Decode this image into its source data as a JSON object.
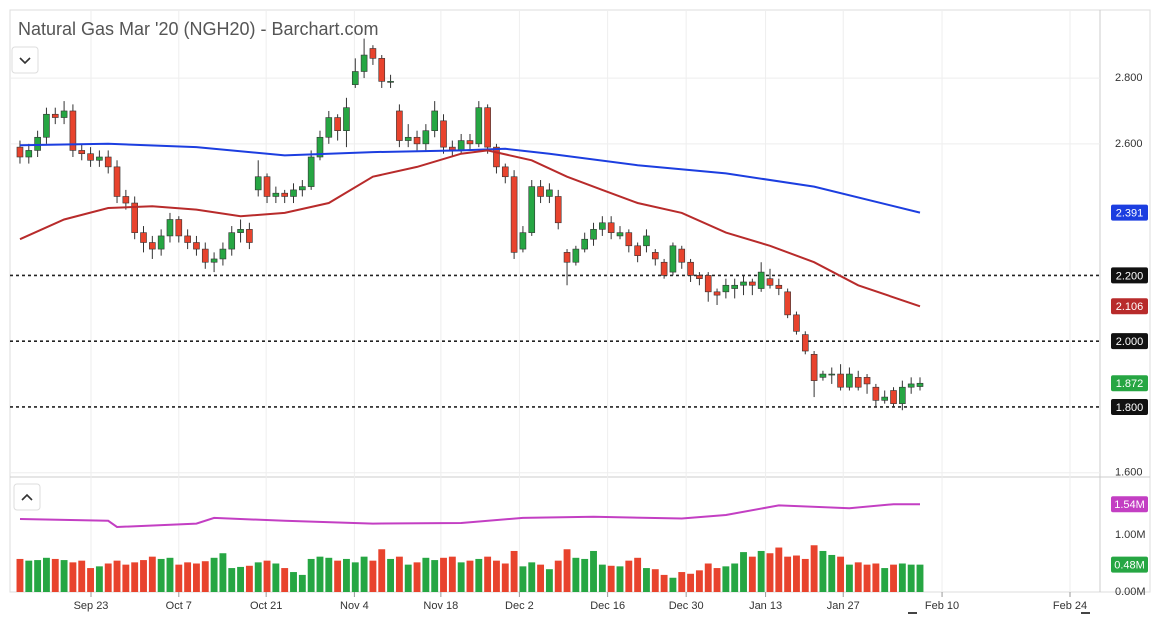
{
  "chart_data": [
    {
      "type": "candlestick",
      "title": "Natural Gas Mar '20 (NGH20) - Barchart.com",
      "up_color": "#26a643",
      "down_color": "#e8432d",
      "xlim": [
        -1.13,
        122.4
      ],
      "xticks": [
        {
          "value": 8.05,
          "label": "Sep 23"
        },
        {
          "value": 18.0,
          "label": "Oct 7"
        },
        {
          "value": 27.9,
          "label": "Oct 21"
        },
        {
          "value": 37.9,
          "label": "Nov 4"
        },
        {
          "value": 47.7,
          "label": "Nov 18"
        },
        {
          "value": 56.6,
          "label": "Dec 2"
        },
        {
          "value": 66.6,
          "label": "Dec 16"
        },
        {
          "value": 75.5,
          "label": "Dec 30"
        },
        {
          "value": 84.5,
          "label": "Jan 13"
        },
        {
          "value": 93.3,
          "label": "Jan 27"
        },
        {
          "value": 104.5,
          "label": "Feb 10"
        },
        {
          "value": 119.0,
          "label": "Feb 24"
        }
      ],
      "ylim": [
        1.59,
        3.007
      ],
      "yticks": [
        {
          "value": 2.8,
          "label": "2.800"
        },
        {
          "value": 2.6,
          "label": "2.600"
        },
        {
          "value": 1.6,
          "label": "1.600"
        }
      ],
      "grid": true,
      "levels": [
        {
          "value": 2.2,
          "label": "2.200"
        },
        {
          "value": 2.0,
          "label": "2.000"
        },
        {
          "value": 1.8,
          "label": "1.800"
        }
      ],
      "candles": [
        [
          2.59,
          2.61,
          2.54,
          2.56
        ],
        [
          2.56,
          2.6,
          2.54,
          2.58
        ],
        [
          2.58,
          2.64,
          2.56,
          2.62
        ],
        [
          2.62,
          2.71,
          2.6,
          2.69
        ],
        [
          2.69,
          2.71,
          2.66,
          2.68
        ],
        [
          2.68,
          2.73,
          2.66,
          2.7
        ],
        [
          2.7,
          2.72,
          2.56,
          2.58
        ],
        [
          2.58,
          2.6,
          2.55,
          2.57
        ],
        [
          2.57,
          2.59,
          2.53,
          2.55
        ],
        [
          2.55,
          2.58,
          2.53,
          2.56
        ],
        [
          2.56,
          2.58,
          2.51,
          2.53
        ],
        [
          2.53,
          2.55,
          2.42,
          2.44
        ],
        [
          2.44,
          2.46,
          2.4,
          2.42
        ],
        [
          2.42,
          2.44,
          2.31,
          2.33
        ],
        [
          2.33,
          2.35,
          2.27,
          2.3
        ],
        [
          2.3,
          2.32,
          2.25,
          2.28
        ],
        [
          2.28,
          2.34,
          2.26,
          2.32
        ],
        [
          2.32,
          2.39,
          2.3,
          2.37
        ],
        [
          2.37,
          2.38,
          2.3,
          2.32
        ],
        [
          2.32,
          2.34,
          2.28,
          2.3
        ],
        [
          2.3,
          2.32,
          2.26,
          2.28
        ],
        [
          2.28,
          2.3,
          2.22,
          2.24
        ],
        [
          2.24,
          2.27,
          2.21,
          2.25
        ],
        [
          2.25,
          2.3,
          2.23,
          2.28
        ],
        [
          2.28,
          2.35,
          2.26,
          2.33
        ],
        [
          2.33,
          2.37,
          2.3,
          2.34
        ],
        [
          2.34,
          2.36,
          2.28,
          2.3
        ],
        [
          2.46,
          2.55,
          2.44,
          2.5
        ],
        [
          2.5,
          2.51,
          2.42,
          2.44
        ],
        [
          2.44,
          2.47,
          2.42,
          2.45
        ],
        [
          2.45,
          2.46,
          2.42,
          2.44
        ],
        [
          2.44,
          2.48,
          2.42,
          2.46
        ],
        [
          2.46,
          2.49,
          2.44,
          2.47
        ],
        [
          2.47,
          2.58,
          2.46,
          2.56
        ],
        [
          2.56,
          2.64,
          2.55,
          2.62
        ],
        [
          2.62,
          2.7,
          2.6,
          2.68
        ],
        [
          2.68,
          2.69,
          2.61,
          2.64
        ],
        [
          2.64,
          2.74,
          2.59,
          2.71
        ],
        [
          2.78,
          2.86,
          2.77,
          2.82
        ],
        [
          2.82,
          2.92,
          2.8,
          2.87
        ],
        [
          2.89,
          2.9,
          2.84,
          2.86
        ],
        [
          2.86,
          2.87,
          2.77,
          2.79
        ],
        [
          2.79,
          2.81,
          2.77,
          2.79
        ],
        [
          2.7,
          2.72,
          2.59,
          2.61
        ],
        [
          2.61,
          2.66,
          2.59,
          2.62
        ],
        [
          2.62,
          2.64,
          2.58,
          2.6
        ],
        [
          2.6,
          2.66,
          2.58,
          2.64
        ],
        [
          2.64,
          2.73,
          2.62,
          2.7
        ],
        [
          2.67,
          2.69,
          2.57,
          2.59
        ],
        [
          2.59,
          2.61,
          2.56,
          2.58
        ],
        [
          2.58,
          2.63,
          2.57,
          2.61
        ],
        [
          2.61,
          2.63,
          2.58,
          2.6
        ],
        [
          2.6,
          2.73,
          2.59,
          2.71
        ],
        [
          2.71,
          2.72,
          2.57,
          2.59
        ],
        [
          2.59,
          2.6,
          2.51,
          2.53
        ],
        [
          2.53,
          2.54,
          2.48,
          2.5
        ],
        [
          2.5,
          2.52,
          2.25,
          2.27
        ],
        [
          2.28,
          2.35,
          2.27,
          2.33
        ],
        [
          2.33,
          2.49,
          2.32,
          2.47
        ],
        [
          2.47,
          2.49,
          2.42,
          2.44
        ],
        [
          2.44,
          2.48,
          2.42,
          2.46
        ],
        [
          2.44,
          2.46,
          2.34,
          2.36
        ],
        [
          2.27,
          2.28,
          2.17,
          2.24
        ],
        [
          2.24,
          2.29,
          2.23,
          2.28
        ],
        [
          2.28,
          2.33,
          2.27,
          2.31
        ],
        [
          2.31,
          2.36,
          2.29,
          2.34
        ],
        [
          2.34,
          2.38,
          2.32,
          2.36
        ],
        [
          2.36,
          2.38,
          2.31,
          2.33
        ],
        [
          2.32,
          2.35,
          2.31,
          2.33
        ],
        [
          2.33,
          2.34,
          2.27,
          2.29
        ],
        [
          2.29,
          2.3,
          2.24,
          2.26
        ],
        [
          2.29,
          2.34,
          2.27,
          2.32
        ],
        [
          2.27,
          2.28,
          2.23,
          2.25
        ],
        [
          2.24,
          2.25,
          2.19,
          2.2
        ],
        [
          2.21,
          2.3,
          2.2,
          2.29
        ],
        [
          2.28,
          2.29,
          2.22,
          2.24
        ],
        [
          2.24,
          2.25,
          2.18,
          2.2
        ],
        [
          2.2,
          2.21,
          2.17,
          2.19
        ],
        [
          2.2,
          2.21,
          2.12,
          2.15
        ],
        [
          2.15,
          2.16,
          2.11,
          2.14
        ],
        [
          2.15,
          2.19,
          2.13,
          2.17
        ],
        [
          2.16,
          2.19,
          2.13,
          2.17
        ],
        [
          2.17,
          2.2,
          2.14,
          2.18
        ],
        [
          2.18,
          2.19,
          2.14,
          2.17
        ],
        [
          2.16,
          2.24,
          2.15,
          2.21
        ],
        [
          2.19,
          2.22,
          2.16,
          2.17
        ],
        [
          2.17,
          2.19,
          2.14,
          2.16
        ],
        [
          2.15,
          2.16,
          2.07,
          2.08
        ],
        [
          2.08,
          2.09,
          2.02,
          2.03
        ],
        [
          2.02,
          2.03,
          1.96,
          1.97
        ],
        [
          1.96,
          1.97,
          1.83,
          1.88
        ],
        [
          1.89,
          1.91,
          1.88,
          1.9
        ],
        [
          1.9,
          1.92,
          1.87,
          1.9
        ],
        [
          1.9,
          1.93,
          1.85,
          1.86
        ],
        [
          1.86,
          1.92,
          1.85,
          1.9
        ],
        [
          1.89,
          1.91,
          1.85,
          1.86
        ],
        [
          1.89,
          1.9,
          1.84,
          1.87
        ],
        [
          1.86,
          1.87,
          1.8,
          1.82
        ],
        [
          1.82,
          1.85,
          1.81,
          1.83
        ],
        [
          1.85,
          1.86,
          1.8,
          1.81
        ],
        [
          1.81,
          1.88,
          1.79,
          1.86
        ],
        [
          1.86,
          1.89,
          1.84,
          1.87
        ],
        [
          1.862,
          1.89,
          1.85,
          1.872
        ]
      ],
      "series": [
        {
          "color": "#1c3ee0",
          "x": [
            0,
            10,
            20,
            30,
            40,
            50,
            55,
            60,
            70,
            80,
            90,
            102
          ],
          "values": [
            2.596,
            2.6,
            2.59,
            2.565,
            2.575,
            2.58,
            2.585,
            2.57,
            2.535,
            2.51,
            2.47,
            2.391
          ]
        },
        {
          "color": "#b82b2b",
          "x": [
            0,
            5,
            10,
            15,
            20,
            25,
            30,
            35,
            40,
            45,
            50,
            53,
            58,
            62,
            66,
            70,
            75,
            80,
            85,
            90,
            95,
            102
          ],
          "values": [
            2.31,
            2.37,
            2.405,
            2.41,
            2.4,
            2.38,
            2.39,
            2.42,
            2.5,
            2.53,
            2.57,
            2.58,
            2.55,
            2.5,
            2.46,
            2.42,
            2.39,
            2.33,
            2.29,
            2.24,
            2.17,
            2.106
          ]
        }
      ]
    },
    {
      "type": "bar",
      "xlim": [
        -1.13,
        122.4
      ],
      "ylim": [
        0,
        2.0
      ],
      "yticks": [
        {
          "value": 1,
          "label": "1.00M"
        },
        {
          "value": 0,
          "label": "0.00M"
        }
      ],
      "last_label": "0.48M",
      "color": "#26a643",
      "values": [
        0.58,
        0.55,
        0.56,
        0.6,
        0.58,
        0.56,
        0.52,
        0.55,
        0.42,
        0.45,
        0.5,
        0.55,
        0.48,
        0.52,
        0.56,
        0.62,
        0.58,
        0.6,
        0.48,
        0.52,
        0.5,
        0.54,
        0.6,
        0.68,
        0.42,
        0.44,
        0.46,
        0.52,
        0.55,
        0.5,
        0.42,
        0.35,
        0.3,
        0.58,
        0.62,
        0.6,
        0.55,
        0.58,
        0.52,
        0.62,
        0.55,
        0.75,
        0.58,
        0.62,
        0.48,
        0.52,
        0.6,
        0.56,
        0.6,
        0.62,
        0.52,
        0.55,
        0.58,
        0.62,
        0.55,
        0.5,
        0.72,
        0.45,
        0.52,
        0.48,
        0.4,
        0.55,
        0.75,
        0.6,
        0.58,
        0.72,
        0.48,
        0.46,
        0.45,
        0.55,
        0.6,
        0.42,
        0.4,
        0.3,
        0.25,
        0.35,
        0.32,
        0.38,
        0.5,
        0.42,
        0.45,
        0.5,
        0.7,
        0.62,
        0.72,
        0.68,
        0.78,
        0.62,
        0.64,
        0.58,
        0.82,
        0.72,
        0.65,
        0.62,
        0.48,
        0.52,
        0.48,
        0.5,
        0.42,
        0.48,
        0.5,
        0.48,
        0.48
      ],
      "series": [
        {
          "color": "#c33fc3",
          "last_label": "1.54M",
          "x": [
            0,
            10,
            11,
            20,
            22,
            30,
            40,
            50,
            57,
            65,
            75,
            80,
            86,
            94,
            99,
            102
          ],
          "values": [
            1.28,
            1.25,
            1.14,
            1.2,
            1.3,
            1.25,
            1.2,
            1.21,
            1.3,
            1.32,
            1.29,
            1.35,
            1.52,
            1.47,
            1.54,
            1.54
          ]
        }
      ]
    }
  ]
}
